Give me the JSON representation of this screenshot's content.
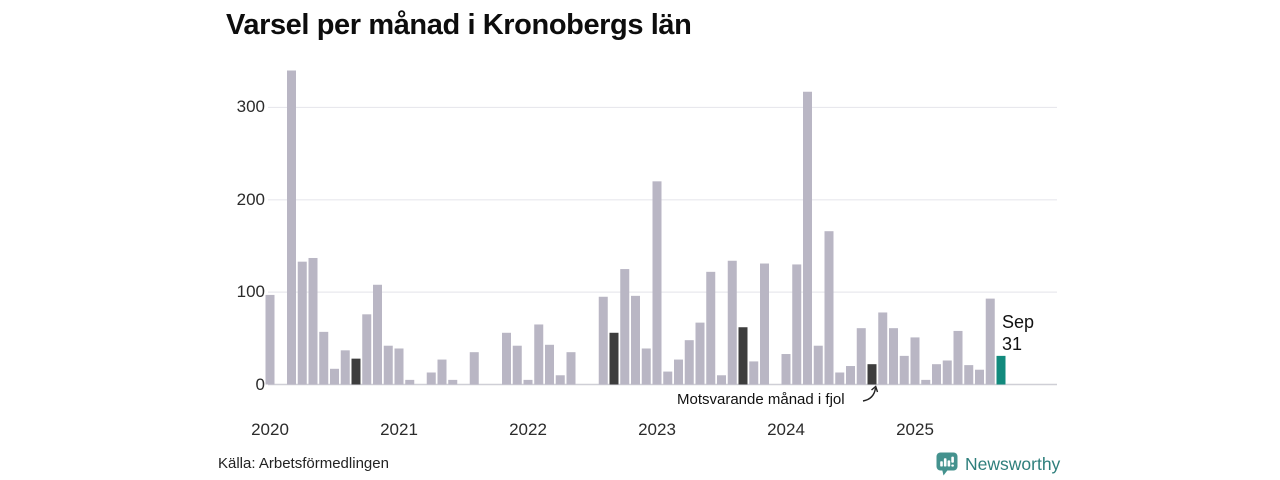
{
  "title": "Varsel per månad i Kronobergs län",
  "source": "Källa: Arbetsförmedlingen",
  "annotation": {
    "text": "Motsvarande månad i fjol",
    "points_to": "2024-09"
  },
  "latest_label": {
    "month": "Sep",
    "value": "31"
  },
  "branding": {
    "logo_text": "Newsworthy"
  },
  "colors": {
    "bar_light": "#b9b6c4",
    "bar_dark": "#3d3d3d",
    "bar_accent": "#128a7d",
    "gridline": "#e8e8ed",
    "baseline": "#cfcfd6",
    "brand_teal": "#2e7f7c",
    "brand_icon": "#44928e"
  },
  "chart_data": {
    "type": "bar",
    "title": "Varsel per månad i Kronobergs län",
    "xlabel": "",
    "ylabel": "",
    "x_years": [
      "2020",
      "2021",
      "2022",
      "2023",
      "2024",
      "2025"
    ],
    "y_ticks": [
      0,
      100,
      200,
      300
    ],
    "ylim": [
      0,
      350
    ],
    "grid": "horizontal",
    "monthly_values": {
      "2020": [
        97,
        0,
        340,
        133,
        137,
        57,
        17,
        37,
        28,
        76,
        108,
        42
      ],
      "2021": [
        39,
        5,
        0,
        13,
        27,
        5,
        0,
        35,
        0,
        0,
        56,
        42
      ],
      "2022": [
        5,
        65,
        43,
        10,
        35,
        0,
        0,
        95,
        56,
        125,
        96,
        39
      ],
      "2023": [
        220,
        14,
        27,
        48,
        67,
        122,
        10,
        134,
        62,
        25,
        131,
        0
      ],
      "2024": [
        33,
        130,
        317,
        42,
        166,
        13,
        20,
        61,
        22,
        78,
        61,
        31
      ],
      "2025": [
        51,
        5,
        22,
        26,
        58,
        21,
        16,
        93,
        31
      ]
    },
    "highlight": {
      "dark_bars": [
        "2020-09",
        "2022-09",
        "2023-09",
        "2024-09"
      ],
      "dark_bars_meaning": "Motsvarande månad i fjol",
      "accent_bar": "2025-09",
      "accent_bar_label": "Sep",
      "accent_bar_value": 31
    }
  }
}
